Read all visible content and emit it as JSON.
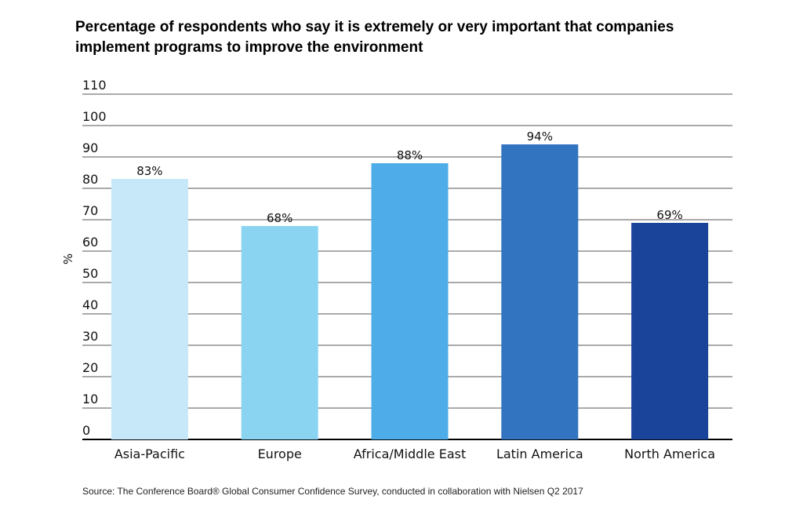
{
  "chart_data": {
    "type": "bar",
    "title": "Percentage of respondents who say it is extremely or very important that companies implement programs to improve the environment",
    "xlabel": "",
    "ylabel": "%",
    "ylim": [
      0,
      110
    ],
    "yticks": [
      0,
      10,
      20,
      30,
      40,
      50,
      60,
      70,
      80,
      90,
      100,
      110
    ],
    "grid": true,
    "categories": [
      "Asia-Pacific",
      "Europe",
      "Africa/Middle East",
      "Latin America",
      "North America"
    ],
    "values": [
      83,
      68,
      88,
      94,
      69
    ],
    "data_labels": [
      "83%",
      "68%",
      "88%",
      "94%",
      "69%"
    ],
    "colors": [
      "#c6e8f8",
      "#8ad4f2",
      "#4eade8",
      "#3274bf",
      "#1a4499"
    ],
    "source": "Source: The Conference Board® Global Consumer Confidence Survey, conducted in collaboration with Nielsen Q2 2017"
  }
}
